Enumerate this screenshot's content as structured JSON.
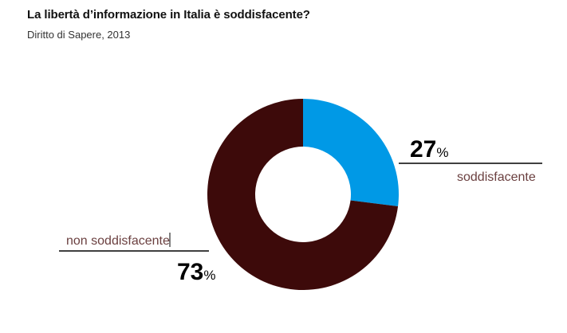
{
  "header": {
    "title": "La libertà d’informazione in Italia è soddisfacente?",
    "subtitle": "Diritto di Sapere, 2013"
  },
  "chart_data": {
    "type": "pie",
    "style": "donut",
    "slices": [
      {
        "label": "soddisfacente",
        "value": 27,
        "value_text": "27",
        "unit": "%",
        "color": "#0099e6"
      },
      {
        "label": "non soddisfacente",
        "value": 73,
        "value_text": "73",
        "unit": "%",
        "color": "#3d0a0a"
      }
    ],
    "label_color": "#6b4040",
    "line_color": "#000000"
  }
}
